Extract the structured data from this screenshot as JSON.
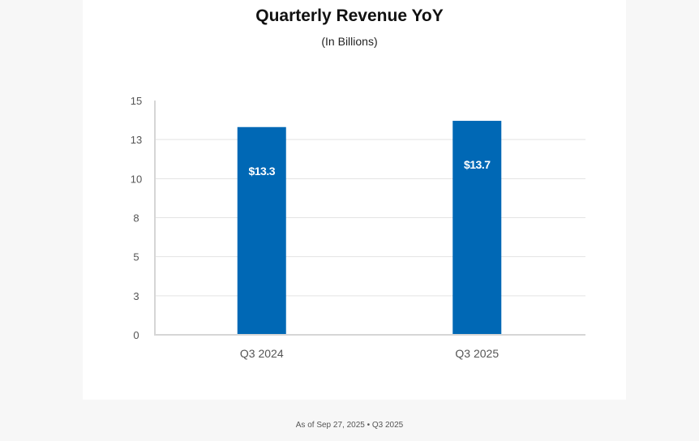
{
  "page": {
    "footer": "As of Sep 27, 2025 • Q3 2025"
  },
  "colors": {
    "bar": "#0068b5",
    "grid": "#e3e3e3",
    "axis": "#d6d6d6",
    "tick_text": "#555555",
    "data_label": "#ffffff"
  },
  "chart_data": {
    "type": "bar",
    "title": "Quarterly Revenue YoY",
    "subtitle": "(In Billions)",
    "xlabel": "",
    "ylabel": "",
    "categories": [
      "Q3 2024",
      "Q3 2025"
    ],
    "values": [
      13.3,
      13.7
    ],
    "data_labels": [
      "$13.3",
      "$13.7"
    ],
    "ylim": [
      0,
      15
    ],
    "yticks": [
      0,
      2.5,
      5,
      7.5,
      10,
      12.5,
      15
    ],
    "ytick_labels": [
      "0",
      "3",
      "5",
      "8",
      "10",
      "13",
      "15"
    ],
    "grid": true,
    "legend": "none"
  }
}
